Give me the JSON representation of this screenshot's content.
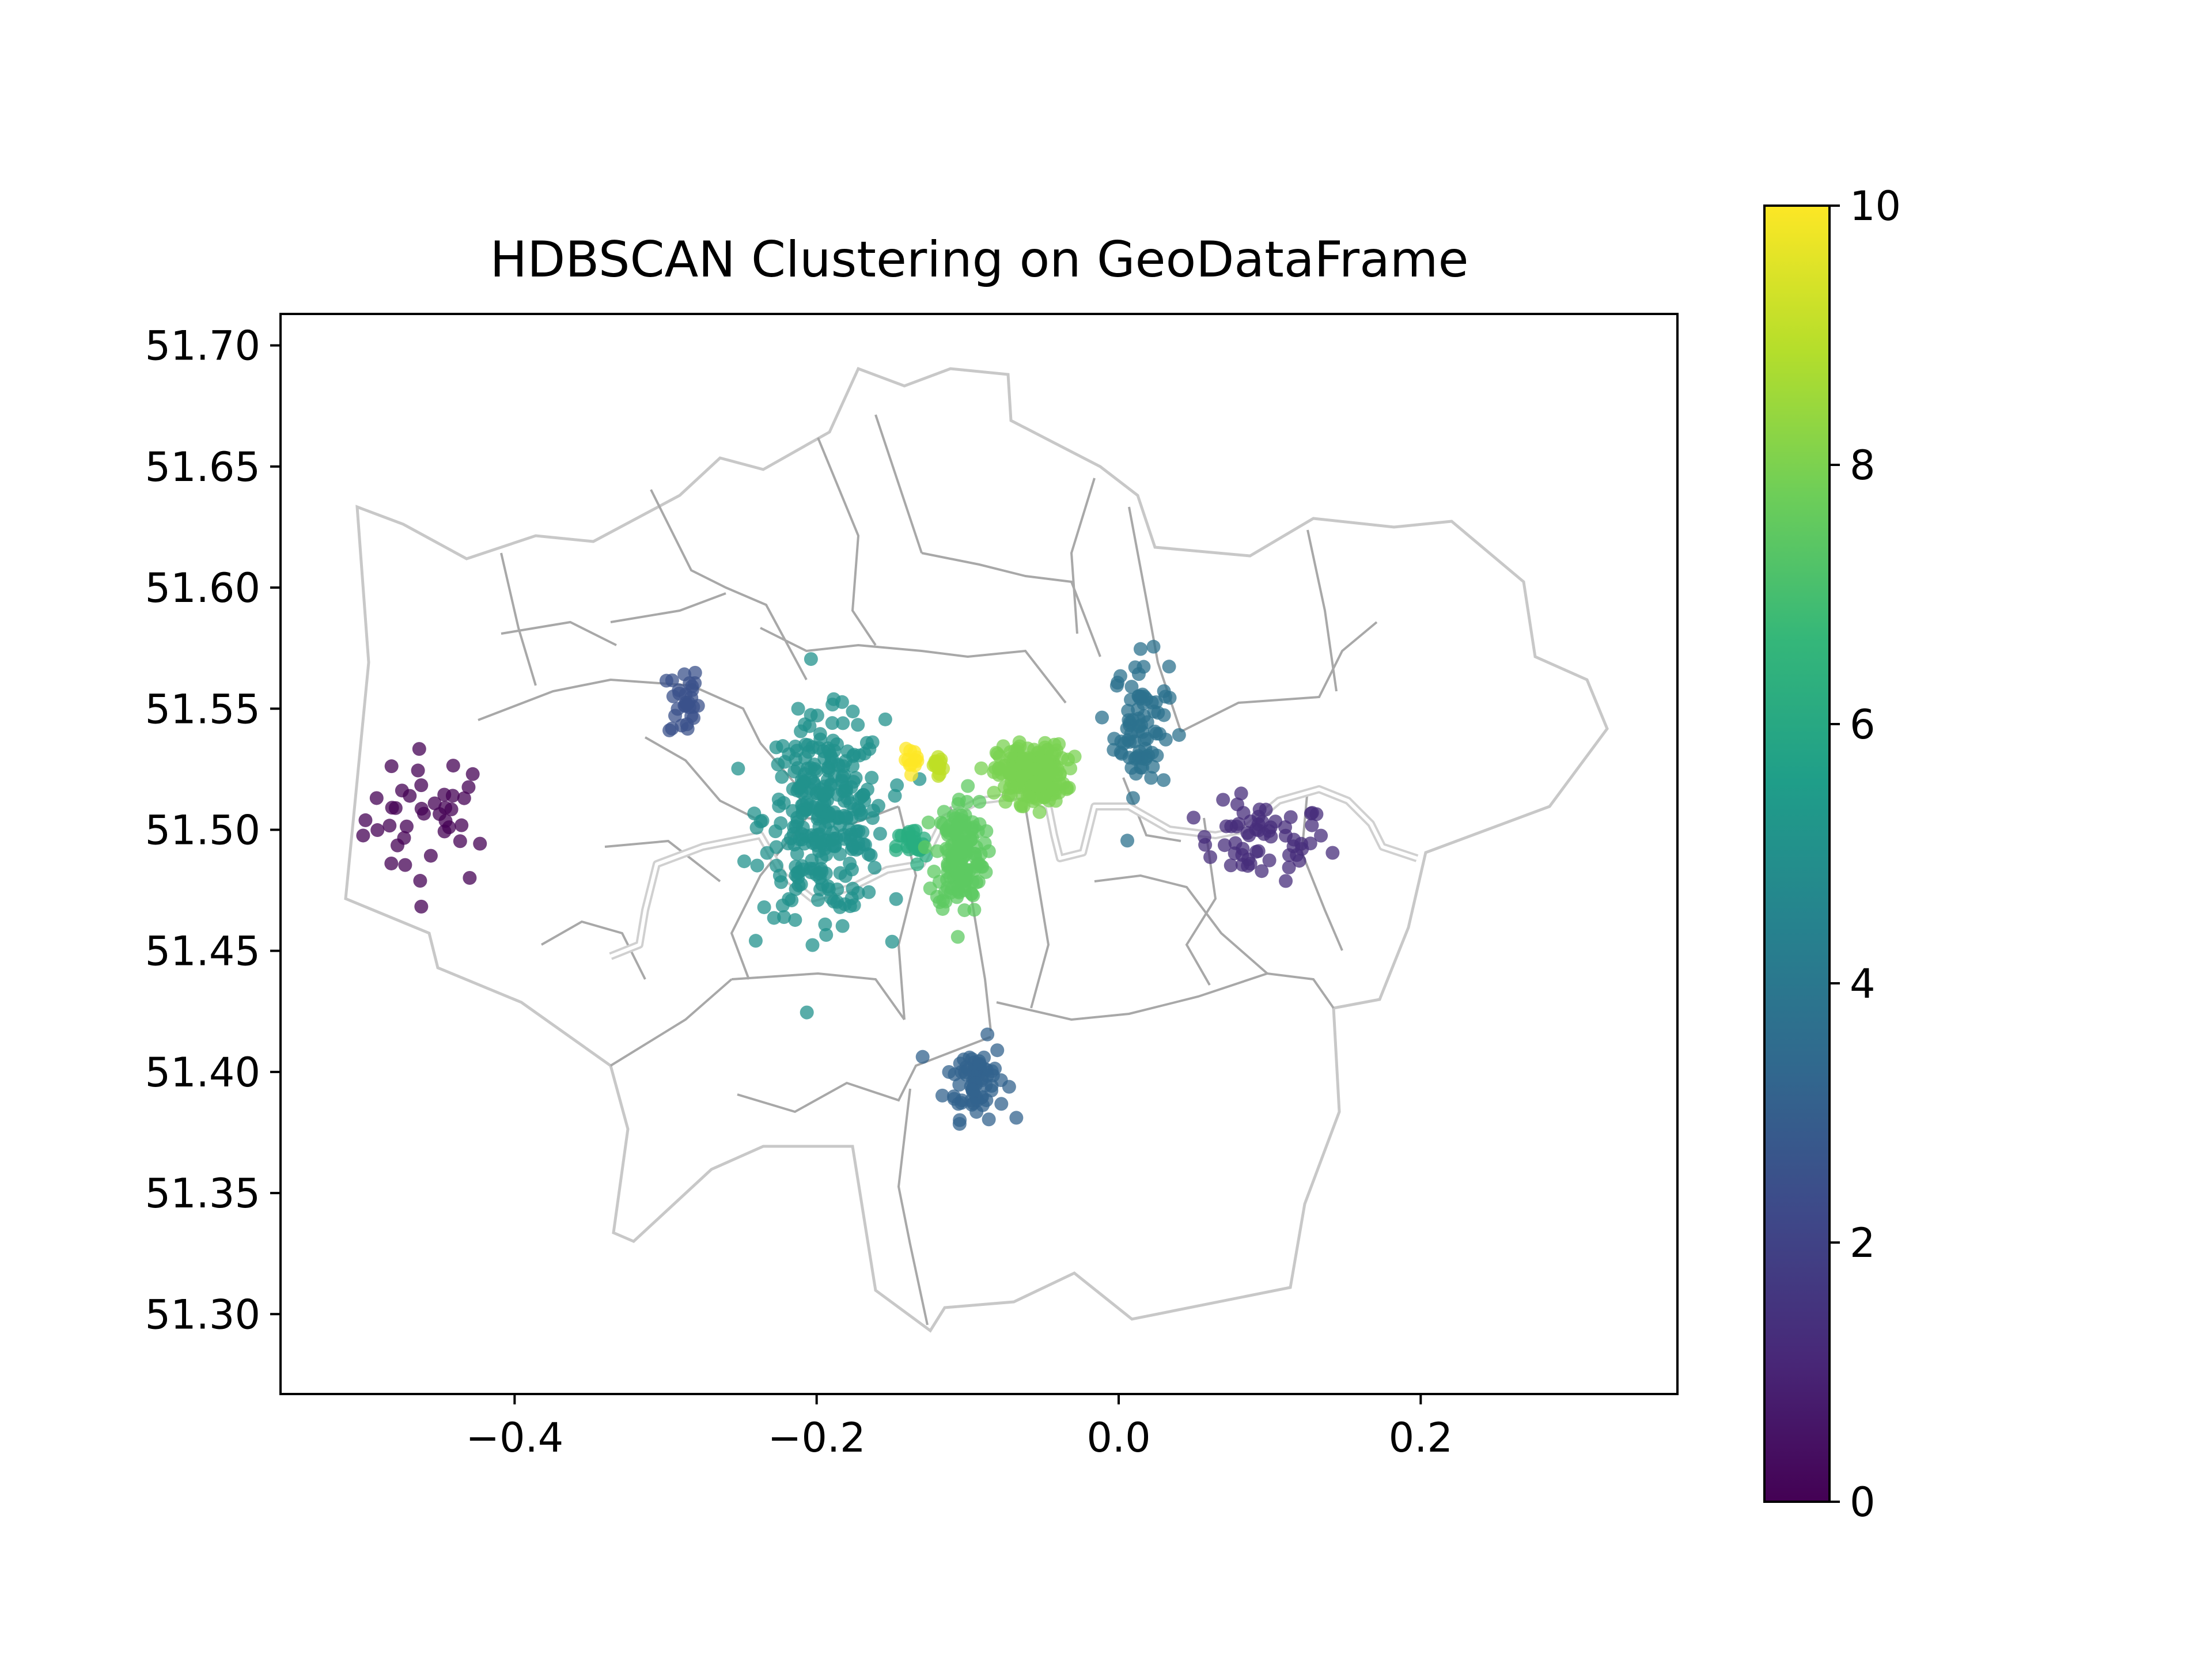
{
  "chart_data": {
    "type": "scatter",
    "title": "HDBSCAN Clustering on GeoDataFrame",
    "xlabel": "",
    "ylabel": "",
    "xlim": [
      -0.555,
      0.37
    ],
    "ylim": [
      51.267,
      51.713
    ],
    "x_ticks": [
      -0.4,
      -0.2,
      0.0,
      0.2
    ],
    "x_tick_labels": [
      "−0.4",
      "−0.2",
      "0.0",
      "0.2"
    ],
    "y_ticks": [
      51.3,
      51.35,
      51.4,
      51.45,
      51.5,
      51.55,
      51.6,
      51.65,
      51.7
    ],
    "y_tick_labels": [
      "51.30",
      "51.35",
      "51.40",
      "51.45",
      "51.50",
      "51.55",
      "51.60",
      "51.65",
      "51.70"
    ],
    "grid": false,
    "background_map": "London borough boundaries with River Thames (light grey outlines)",
    "colorbar": {
      "colormap": "viridis",
      "range": [
        0,
        10
      ],
      "ticks": [
        0,
        2,
        4,
        6,
        8,
        10
      ],
      "tick_labels": [
        "0",
        "2",
        "4",
        "6",
        "8",
        "10"
      ],
      "colors": [
        "#440154",
        "#482878",
        "#3e4989",
        "#31688e",
        "#26828e",
        "#1f9e89",
        "#35b779",
        "#6ece58",
        "#b5de2b",
        "#fde725"
      ]
    },
    "clusters": [
      {
        "label": 0,
        "color": "#440154",
        "center": [
          -0.455,
          51.505
        ],
        "spread": [
          0.022,
          0.014
        ],
        "count": 40
      },
      {
        "label": 1,
        "color": "#472d7b",
        "center": [
          0.095,
          51.495
        ],
        "spread": [
          0.022,
          0.008
        ],
        "count": 60
      },
      {
        "label": 2,
        "color": "#3b528b",
        "center": [
          -0.288,
          51.553
        ],
        "spread": [
          0.005,
          0.008
        ],
        "count": 30
      },
      {
        "label": 3,
        "color": "#33638d",
        "center": [
          -0.095,
          51.397
        ],
        "spread": [
          0.01,
          0.008
        ],
        "count": 70
      },
      {
        "label": 4,
        "color": "#2c728e",
        "center": [
          0.015,
          51.543
        ],
        "spread": [
          0.009,
          0.014
        ],
        "count": 80
      },
      {
        "label": 5,
        "color": "#21918c",
        "center": [
          -0.195,
          51.505
        ],
        "spread": [
          0.02,
          0.02
        ],
        "count": 300
      },
      {
        "label": 6,
        "color": "#28ae80",
        "center": [
          -0.137,
          51.493
        ],
        "spread": [
          0.005,
          0.004
        ],
        "count": 25
      },
      {
        "label": 7,
        "color": "#5ec962",
        "center": [
          -0.105,
          51.49
        ],
        "spread": [
          0.008,
          0.012
        ],
        "count": 160
      },
      {
        "label": 8,
        "color": "#7ad151",
        "center": [
          -0.058,
          51.523
        ],
        "spread": [
          0.011,
          0.006
        ],
        "count": 220
      },
      {
        "label": 9,
        "color": "#bddf26",
        "center": [
          -0.12,
          51.527
        ],
        "spread": [
          0.004,
          0.002
        ],
        "count": 15
      },
      {
        "label": 10,
        "color": "#fde725",
        "center": [
          -0.136,
          51.529
        ],
        "spread": [
          0.003,
          0.002
        ],
        "count": 12
      }
    ]
  }
}
